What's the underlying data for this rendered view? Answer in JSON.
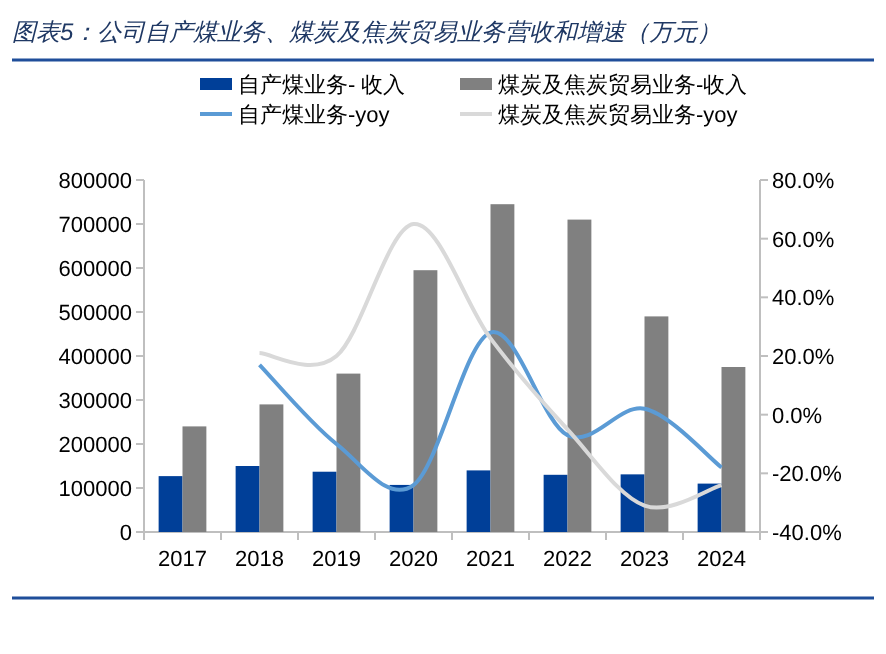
{
  "chart_data": {
    "type": "bar",
    "title": "图表5：公司自产煤业务、煤炭及焦炭贸易业务营收和增速（万元）",
    "categories": [
      "2017",
      "2018",
      "2019",
      "2020",
      "2021",
      "2022",
      "2023",
      "2024"
    ],
    "series": [
      {
        "name": "自产煤业务- 收入",
        "color": "#003f98",
        "values": [
          127000,
          150000,
          137000,
          107000,
          140000,
          130000,
          131000,
          110000
        ]
      },
      {
        "name": "煤炭及焦炭贸易业务-收入",
        "color": "#808080",
        "values": [
          240000,
          290000,
          360000,
          595000,
          745000,
          710000,
          490000,
          375000
        ]
      },
      {
        "name": "自产煤业务-yoy",
        "type": "line",
        "axis": "y2",
        "color": "#5b9bd5",
        "values": [
          null,
          17,
          -10,
          -24,
          28,
          -7,
          2,
          -18
        ]
      },
      {
        "name": "煤炭及焦炭贸易业务-yoy",
        "type": "line",
        "axis": "y2",
        "color": "#d9d9d9",
        "values": [
          null,
          21,
          20,
          65,
          26,
          -5,
          -31,
          -24
        ]
      }
    ],
    "ylim": [
      0,
      800000
    ],
    "yticks": [
      0,
      100000,
      200000,
      300000,
      400000,
      500000,
      600000,
      700000,
      800000
    ],
    "y2lim": [
      -40,
      80
    ],
    "y2ticks": [
      {
        "value": -40,
        "label": "-40.0%"
      },
      {
        "value": -20,
        "label": "-20.0%"
      },
      {
        "value": 0,
        "label": "0.0%"
      },
      {
        "value": 20,
        "label": "20.0%"
      },
      {
        "value": 40,
        "label": "40.0%"
      },
      {
        "value": 60,
        "label": "60.0%"
      },
      {
        "value": 80,
        "label": "80.0%"
      }
    ],
    "legend": "top"
  }
}
